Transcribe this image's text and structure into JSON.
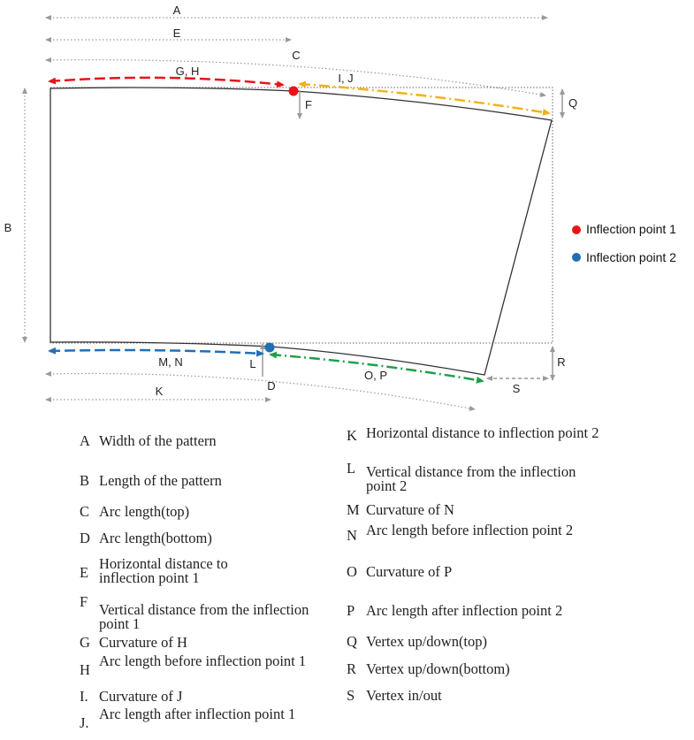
{
  "diagram": {
    "labels": {
      "A": "A",
      "E": "E",
      "C": "C",
      "GH": "G, H",
      "IJ": "I, J",
      "F": "F",
      "Q": "Q",
      "B": "B",
      "MN": "M, N",
      "L": "L",
      "D": "D",
      "OP": "O, P",
      "K": "K",
      "S": "S",
      "R": "R"
    },
    "legend": [
      {
        "name": "Inflection point 1",
        "color": "#e8141b"
      },
      {
        "name": "Inflection point 2",
        "color": "#1f6fb5"
      }
    ],
    "colors": {
      "red": "#e8141b",
      "yellow": "#f2b21a",
      "blue": "#1f6fb5",
      "green": "#1ea04a",
      "gray": "#9a9a9a"
    }
  },
  "key": [
    {
      "letter": "A",
      "text": "Width of the pattern"
    },
    {
      "letter": "B",
      "text": "Length of the pattern"
    },
    {
      "letter": "C",
      "text": "Arc length(top)"
    },
    {
      "letter": "D",
      "text": "Arc length(bottom)"
    },
    {
      "letter": "E",
      "text": "Horizontal distance to inflection point 1"
    },
    {
      "letter": "F",
      "text": "Vertical distance from the inflection point 1"
    },
    {
      "letter": "G",
      "text": "Curvature of H"
    },
    {
      "letter": "H",
      "text": "Arc length before inflection point 1"
    },
    {
      "letter": "I.",
      "text": "Curvature of J"
    },
    {
      "letter": "J.",
      "text": "Arc length after inflection point 1"
    },
    {
      "letter": "K",
      "text": "Horizontal distance to inflection point 2"
    },
    {
      "letter": "L",
      "text": "Vertical distance from the inflection point 2"
    },
    {
      "letter": "M",
      "text": "Curvature of N"
    },
    {
      "letter": "N",
      "text": "Arc length before inflection point 2"
    },
    {
      "letter": "O",
      "text": "Curvature of P"
    },
    {
      "letter": "P",
      "text": "Arc length after inflection point 2"
    },
    {
      "letter": "Q",
      "text": "Vertex up/down(top)"
    },
    {
      "letter": "R",
      "text": "Vertex up/down(bottom)"
    },
    {
      "letter": "S",
      "text": "Vertex in/out"
    }
  ]
}
